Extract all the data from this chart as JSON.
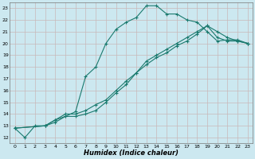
{
  "xlabel": "Humidex (Indice chaleur)",
  "bg_color": "#cce8f0",
  "grid_color": "#c8b8b8",
  "line_color": "#1a7a6e",
  "xlim": [
    -0.5,
    23.5
  ],
  "ylim": [
    11.5,
    23.5
  ],
  "xticks": [
    0,
    1,
    2,
    3,
    4,
    5,
    6,
    7,
    8,
    9,
    10,
    11,
    12,
    13,
    14,
    15,
    16,
    17,
    18,
    19,
    20,
    21,
    22,
    23
  ],
  "yticks": [
    12,
    13,
    14,
    15,
    16,
    17,
    18,
    19,
    20,
    21,
    22,
    23
  ],
  "curve1_x": [
    0,
    1,
    2,
    3,
    4,
    5,
    6,
    7,
    8,
    9,
    10,
    11,
    12,
    13,
    14,
    15,
    16,
    17,
    18,
    19,
    20,
    21,
    22,
    23
  ],
  "curve1_y": [
    12.8,
    12.0,
    13.0,
    13.0,
    13.3,
    13.8,
    14.2,
    17.2,
    18.0,
    20.0,
    21.2,
    21.8,
    22.2,
    23.2,
    23.2,
    22.5,
    22.5,
    22.0,
    21.8,
    21.0,
    20.2,
    20.3,
    20.3,
    20.0
  ],
  "curve2_x": [
    0,
    3,
    4,
    5,
    6,
    7,
    8,
    9,
    10,
    11,
    12,
    13,
    14,
    15,
    16,
    17,
    18,
    19,
    20,
    21,
    22,
    23
  ],
  "curve2_y": [
    12.8,
    13.0,
    13.5,
    13.8,
    13.8,
    14.0,
    14.3,
    15.0,
    15.8,
    16.5,
    17.5,
    18.5,
    19.0,
    19.5,
    20.0,
    20.5,
    21.0,
    21.5,
    21.0,
    20.5,
    20.2,
    20.0
  ],
  "curve3_x": [
    0,
    3,
    4,
    5,
    6,
    7,
    8,
    9,
    10,
    11,
    12,
    13,
    14,
    15,
    16,
    17,
    18,
    19,
    20,
    21,
    22,
    23
  ],
  "curve3_y": [
    12.8,
    13.0,
    13.5,
    14.0,
    14.0,
    14.3,
    14.8,
    15.2,
    16.0,
    16.8,
    17.5,
    18.2,
    18.8,
    19.2,
    19.8,
    20.2,
    20.8,
    21.5,
    20.5,
    20.2,
    20.2,
    20.0
  ]
}
